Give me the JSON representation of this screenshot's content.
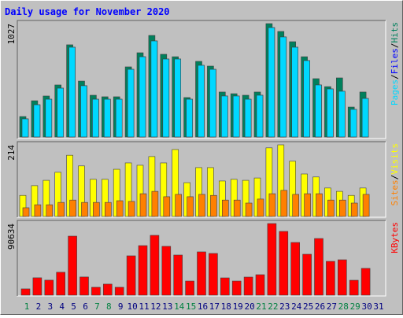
{
  "title": "Daily usage for November 2020",
  "legend_separator": "/",
  "chart_data": [
    {
      "type": "bar",
      "ylim": [
        0,
        1027
      ],
      "yticks": [
        1027
      ],
      "series": [
        {
          "name": "Hits",
          "color": "#00805c",
          "values": [
            185,
            328,
            371,
            471,
            835,
            506,
            378,
            364,
            364,
            635,
            763,
            920,
            749,
            727,
            357,
            685,
            642,
            407,
            392,
            378,
            407,
            1027,
            956,
            863,
            727,
            528,
            456,
            535,
            271,
            407,
            0
          ]
        },
        {
          "name": "Files",
          "color": "#0000ff",
          "values": [
            164,
            292,
            342,
            442,
            813,
            464,
            342,
            342,
            342,
            613,
            727,
            870,
            706,
            706,
            342,
            649,
            613,
            371,
            371,
            342,
            378,
            991,
            906,
            813,
            692,
            471,
            435,
            414,
            250,
            349,
            0
          ]
        },
        {
          "name": "Pages",
          "color": "#00d8ff",
          "values": [
            164,
            292,
            342,
            442,
            813,
            464,
            342,
            342,
            342,
            613,
            727,
            870,
            706,
            706,
            342,
            649,
            613,
            371,
            371,
            342,
            378,
            991,
            906,
            813,
            692,
            471,
            435,
            414,
            250,
            349,
            0
          ]
        }
      ]
    },
    {
      "type": "bar",
      "ylim": [
        0,
        214
      ],
      "yticks": [
        214
      ],
      "series": [
        {
          "name": "Visits",
          "color": "#ffff00",
          "values": [
            63,
            92,
            108,
            132,
            183,
            151,
            111,
            111,
            141,
            160,
            153,
            179,
            160,
            200,
            101,
            146,
            146,
            106,
            111,
            108,
            115,
            205,
            214,
            165,
            127,
            118,
            85,
            75,
            63,
            85,
            0
          ]
        },
        {
          "name": "Sites",
          "color": "#ff8000",
          "values": [
            26,
            35,
            35,
            42,
            49,
            42,
            42,
            42,
            47,
            45,
            68,
            75,
            59,
            66,
            59,
            66,
            63,
            49,
            49,
            40,
            52,
            68,
            78,
            66,
            68,
            68,
            49,
            49,
            40,
            66,
            0
          ]
        }
      ]
    },
    {
      "type": "bar",
      "ylim": [
        0,
        90634
      ],
      "yticks": [
        90634
      ],
      "categories": [
        "1",
        "2",
        "3",
        "4",
        "5",
        "6",
        "7",
        "8",
        "9",
        "10",
        "11",
        "12",
        "13",
        "14",
        "15",
        "16",
        "17",
        "18",
        "19",
        "20",
        "21",
        "22",
        "23",
        "24",
        "25",
        "26",
        "27",
        "28",
        "29",
        "30",
        "31"
      ],
      "category_colors": [
        "#008040",
        "#000080",
        "#000080",
        "#000080",
        "#000080",
        "#000080",
        "#008040",
        "#008040",
        "#000080",
        "#000080",
        "#000080",
        "#000080",
        "#000080",
        "#008040",
        "#008040",
        "#000080",
        "#000080",
        "#000080",
        "#000080",
        "#000080",
        "#008040",
        "#008040",
        "#000080",
        "#000080",
        "#000080",
        "#000080",
        "#000080",
        "#008040",
        "#008040",
        "#000080",
        "#000080"
      ],
      "series": [
        {
          "name": "KBytes",
          "color": "#ff0000",
          "values": [
            8000,
            22000,
            19000,
            29000,
            74700,
            23000,
            10000,
            14000,
            10000,
            49800,
            62700,
            75700,
            61800,
            50800,
            17900,
            54800,
            52800,
            21900,
            17900,
            22900,
            25900,
            90634,
            80700,
            66700,
            51800,
            71700,
            42800,
            44800,
            18900,
            33900,
            0
          ]
        }
      ]
    }
  ]
}
